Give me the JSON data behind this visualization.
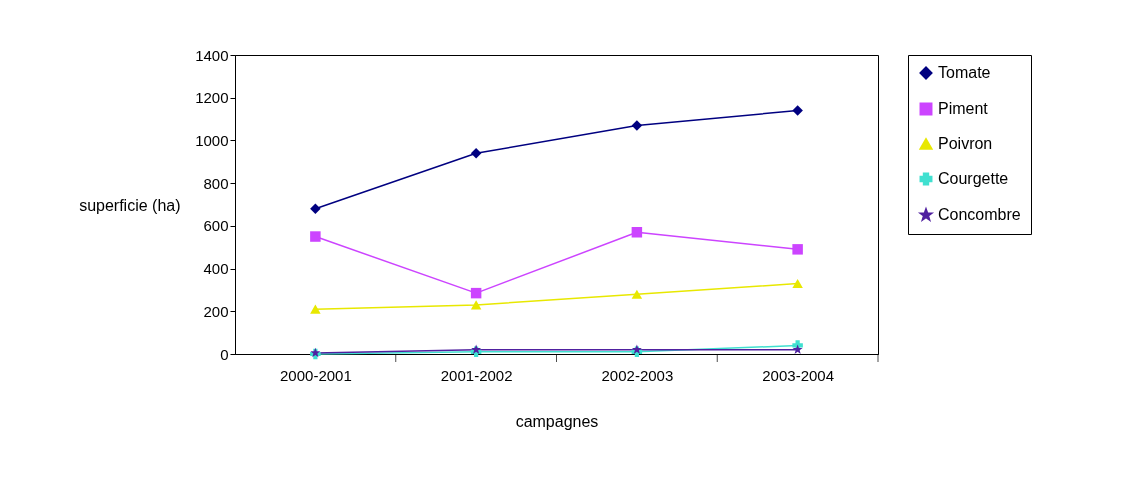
{
  "chart_data": {
    "type": "line",
    "xlabel": "campagnes",
    "ylabel": "superficie (ha)",
    "categories": [
      "2000-2001",
      "2001-2002",
      "2002-2003",
      "2003-2004"
    ],
    "series": [
      {
        "name": "Tomate",
        "color": "#000080",
        "marker": "diamond",
        "values": [
          680,
          940,
          1070,
          1140
        ]
      },
      {
        "name": "Piment",
        "color": "#cc44ff",
        "marker": "square",
        "values": [
          550,
          285,
          570,
          490
        ]
      },
      {
        "name": "Poivron",
        "color": "#e8e800",
        "marker": "triangle",
        "values": [
          210,
          230,
          280,
          330
        ]
      },
      {
        "name": "Courgette",
        "color": "#40e0d0",
        "marker": "cross",
        "values": [
          0,
          10,
          10,
          40
        ]
      },
      {
        "name": "Concombre",
        "color": "#5020a0",
        "marker": "star",
        "values": [
          5,
          20,
          20,
          20
        ]
      }
    ],
    "ylim": [
      0,
      1400
    ],
    "yticks": [
      0,
      200,
      400,
      600,
      800,
      1000,
      1200,
      1400
    ],
    "grid": false,
    "legend": "right",
    "line_style": "solid"
  }
}
